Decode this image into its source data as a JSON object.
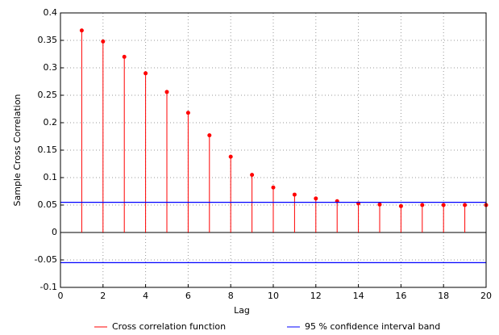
{
  "chart_data": {
    "type": "stem",
    "x_label": "Lag",
    "y_label": "Sample Cross Correlation",
    "x": [
      1,
      2,
      3,
      4,
      5,
      6,
      7,
      8,
      9,
      10,
      11,
      12,
      13,
      14,
      15,
      16,
      17,
      18,
      19,
      20
    ],
    "series": [
      {
        "name": "Cross correlation function",
        "color": "#ff0000",
        "values": [
          0.368,
          0.348,
          0.32,
          0.29,
          0.256,
          0.218,
          0.177,
          0.138,
          0.105,
          0.082,
          0.069,
          0.062,
          0.057,
          0.053,
          0.051,
          0.048,
          0.05,
          0.05,
          0.05,
          0.05
        ]
      },
      {
        "name": "95 % confidence interval band",
        "color": "#0000ff",
        "bounds": [
          0.055,
          -0.055
        ]
      }
    ],
    "xlim": [
      0,
      20
    ],
    "xticks": [
      0,
      2,
      4,
      6,
      8,
      10,
      12,
      14,
      16,
      18,
      20
    ],
    "ylim": [
      -0.1,
      0.4
    ],
    "yticks": [
      -0.1,
      -0.05,
      0,
      0.05,
      0.1,
      0.15,
      0.2,
      0.25,
      0.3,
      0.35,
      0.4
    ],
    "grid": true
  }
}
